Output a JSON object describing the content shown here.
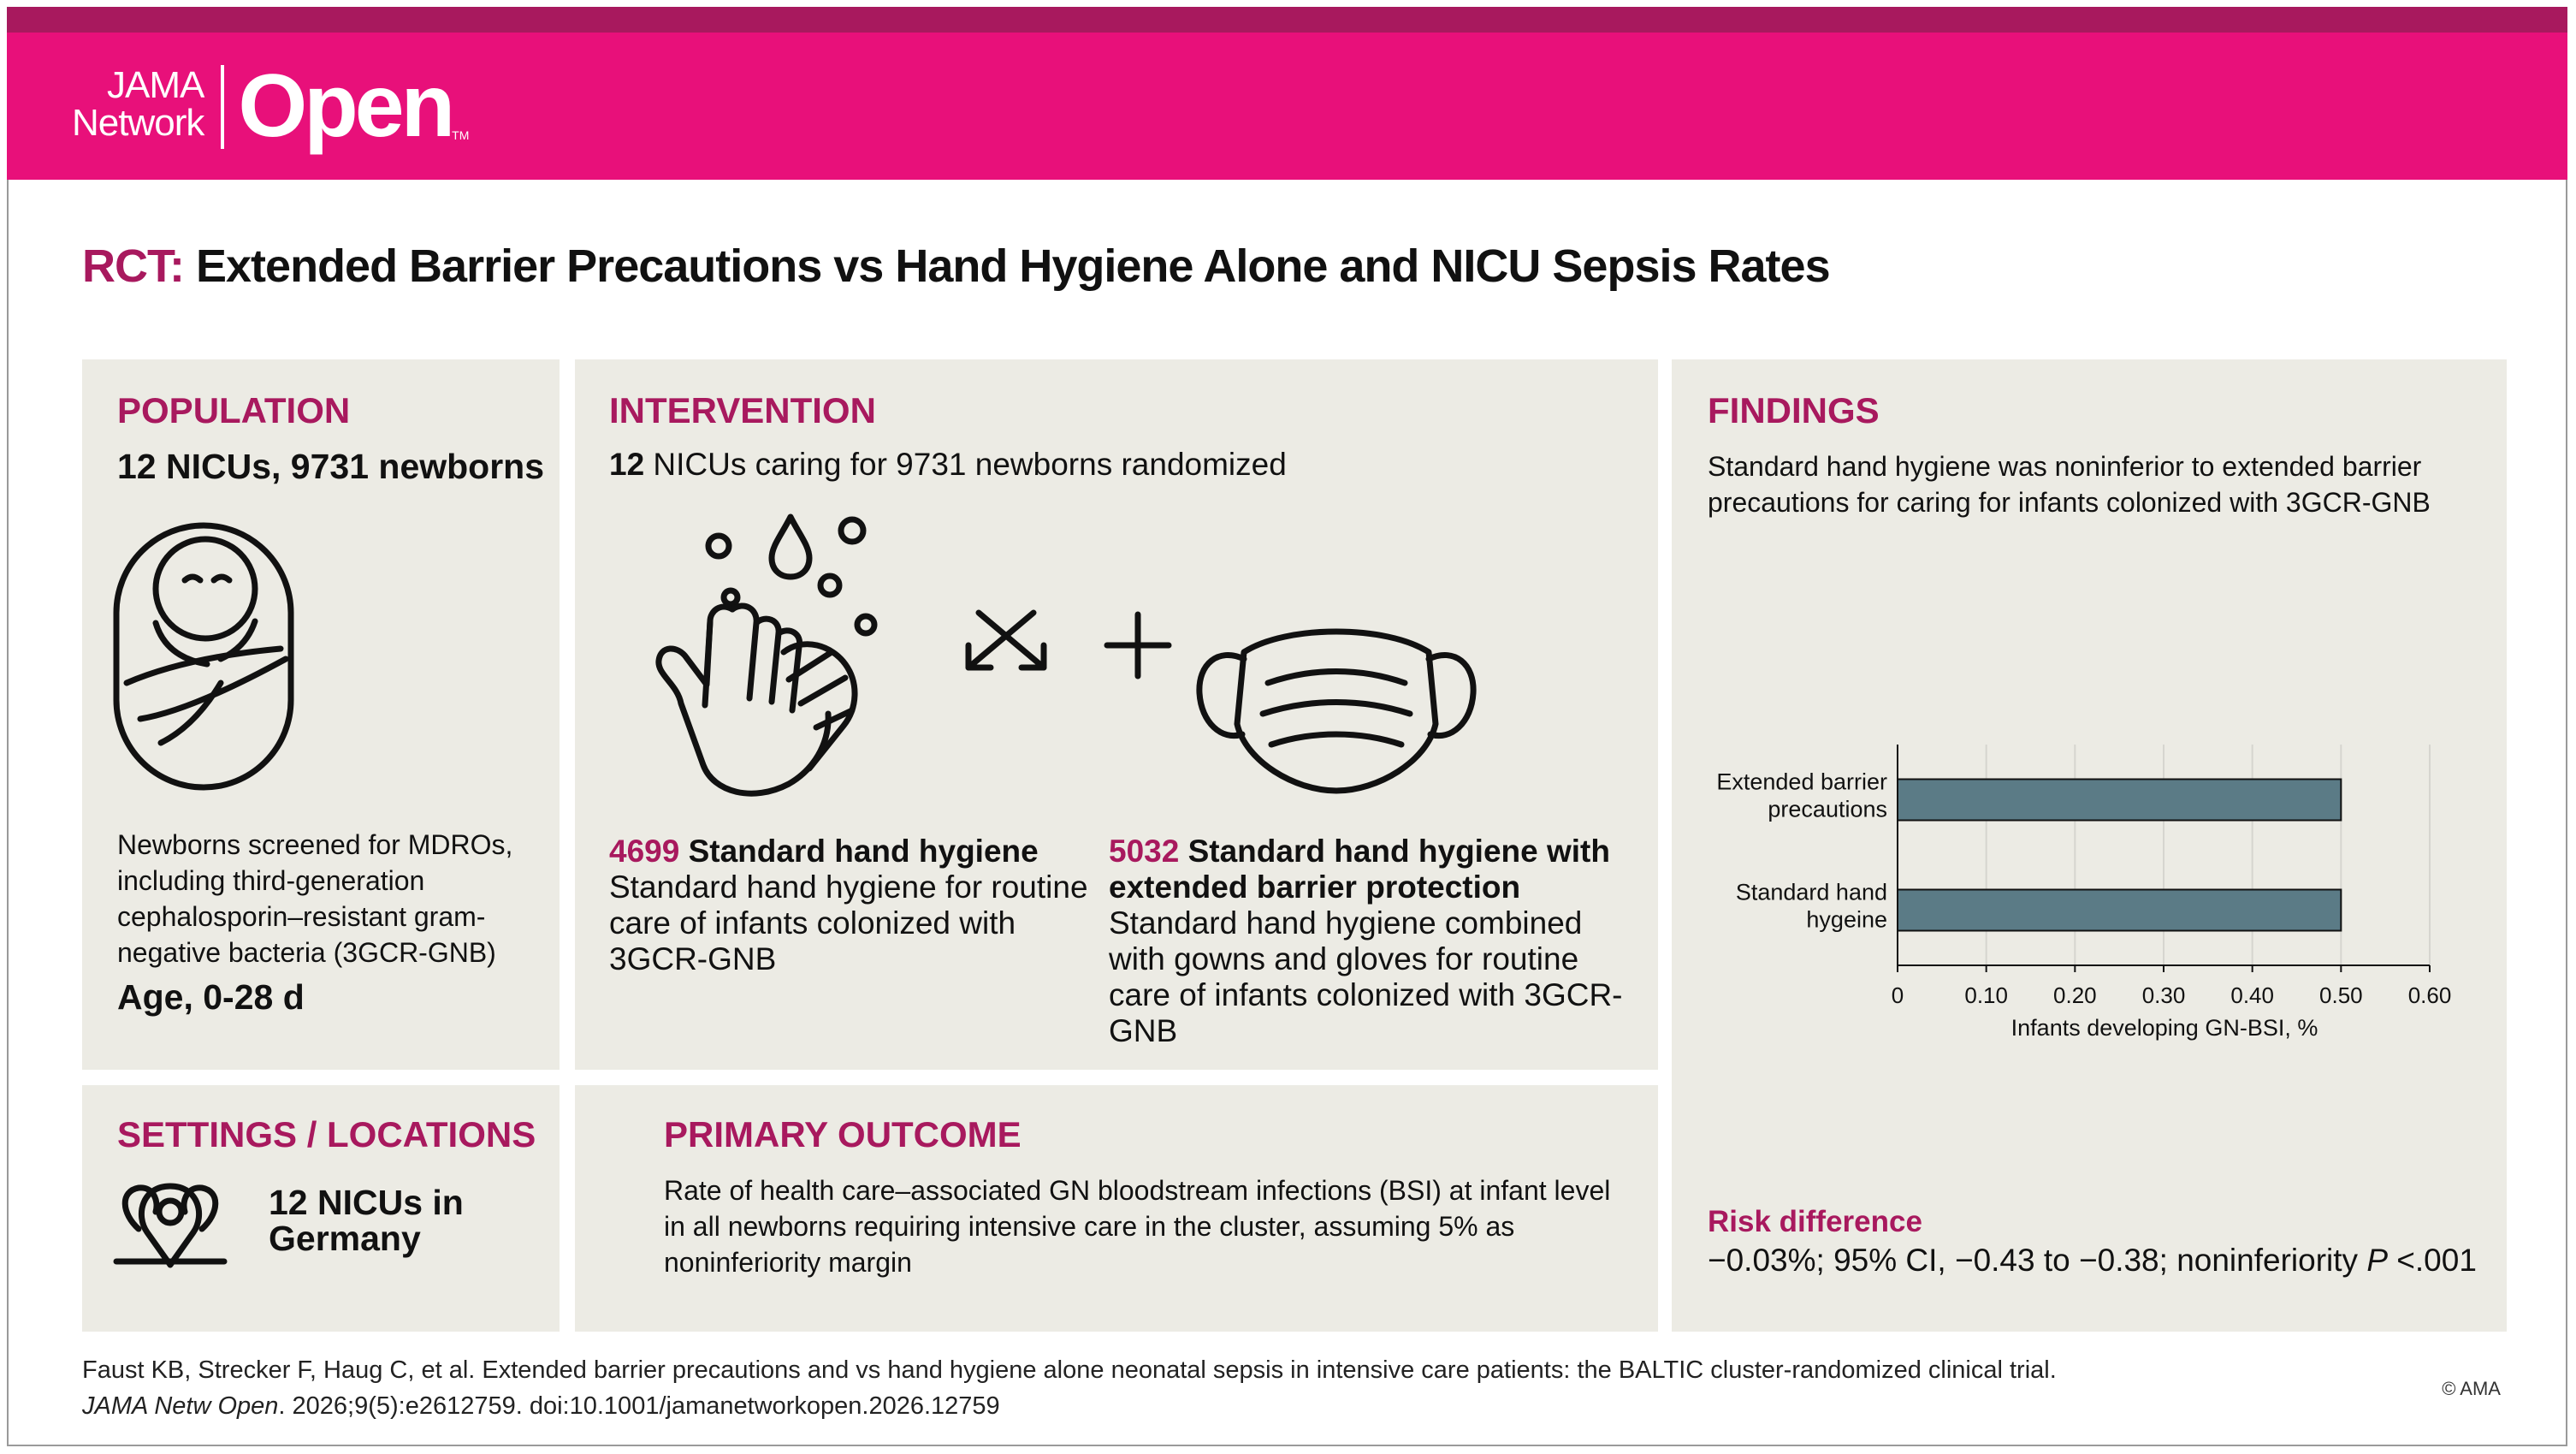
{
  "brand": {
    "line1": "JAMA",
    "line2": "Network",
    "word": "Open",
    "tm": "TM"
  },
  "title": {
    "prefix": "RCT:",
    "text": "Extended Barrier Precautions vs Hand Hygiene Alone and NICU Sepsis Rates"
  },
  "population": {
    "heading": "POPULATION",
    "summary": "12 NICUs, 9731 newborns",
    "icon": "swaddled-baby-icon",
    "description": "Newborns screened for MDROs, including third-generation cephalosporin–resistant gram-negative bacteria (3GCR-GNB)",
    "age": "Age, 0-28 d"
  },
  "settings": {
    "heading": "SETTINGS / LOCATIONS",
    "icon": "location-pins-icon",
    "text": "12 NICUs in Germany"
  },
  "intervention": {
    "heading": "INTERVENTION",
    "lead_num": "12",
    "lead_text": " NICUs caring for 9731 newborns randomized",
    "icons": [
      "hand-washing-icon",
      "randomize-arrows-icon",
      "plus-icon",
      "face-mask-icon"
    ],
    "arm1": {
      "count": "4699",
      "title": " Standard hand hygiene",
      "desc": "Standard hand hygiene for routine care of infants colonized with 3GCR-GNB"
    },
    "arm2": {
      "count": "5032",
      "title": " Standard hand hygiene with extended barrier protection",
      "desc": "Standard hand hygiene combined with gowns and gloves for routine care of infants colonized with 3GCR-GNB"
    }
  },
  "outcome": {
    "heading": "PRIMARY OUTCOME",
    "text": "Rate of health care–associated GN bloodstream infections (BSI) at infant level in all newborns requiring intensive care in the cluster, assuming 5% as noninferiority margin"
  },
  "findings": {
    "heading": "FINDINGS",
    "summary": "Standard hand hygiene was noninferior to extended barrier precautions for caring for infants colonized with 3GCR-GNB",
    "risk_heading": "Risk difference",
    "risk_pre": "−0.03%; 95% CI, −0.43 to −0.38; noninferiority ",
    "risk_p": "P",
    "risk_post": " <.001"
  },
  "chart_data": {
    "type": "bar",
    "orientation": "horizontal",
    "categories": [
      "Extended barrier precautions",
      "Standard hand hygeine"
    ],
    "category_lines": [
      [
        "Extended barrier",
        "precautions"
      ],
      [
        "Standard hand",
        "hygeine"
      ]
    ],
    "values": [
      0.5,
      0.5
    ],
    "xlabel": "Infants developing GN-BSI, %",
    "xlim": [
      0,
      0.6
    ],
    "xticks": [
      "0",
      "0.10",
      "0.20",
      "0.30",
      "0.40",
      "0.50",
      "0.60"
    ],
    "grid": true,
    "bar_color": "#5b7b86"
  },
  "citation": {
    "line1": "Faust KB, Strecker F, Haug C, et al. Extended barrier precautions and vs hand hygiene alone neonatal sepsis in intensive care patients: the BALTIC cluster-randomized clinical trial.",
    "journal": "JAMA Netw Open",
    "rest": ". 2026;9(5):e2612759. doi:10.1001/jamanetworkopen.2026.12759"
  },
  "copyright": "© AMA",
  "colors": {
    "brand_magenta": "#e8107a",
    "brand_dark": "#a8195e",
    "panel_bg": "#ecebe4"
  }
}
